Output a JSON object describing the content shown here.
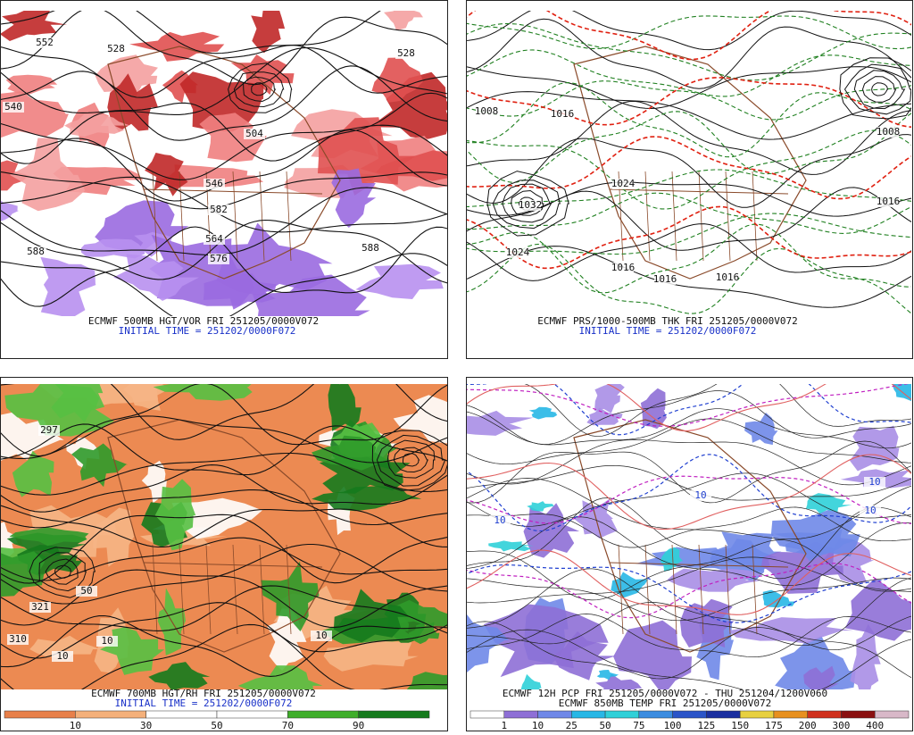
{
  "panels": [
    {
      "caption": "ECMWF 500MB HGT/VOR FRI 251205/0000V072",
      "subcaption": "INITIAL TIME = 251202/0000F072",
      "contour_labels": [
        "552",
        "528",
        "540",
        "528",
        "504",
        "546",
        "582",
        "564",
        "576",
        "588",
        "588"
      ]
    },
    {
      "caption": "ECMWF PRS/1000-500MB THK FRI 251205/0000V072",
      "subcaption": "INITIAL TIME = 251202/0000F072",
      "contour_labels": [
        "1008",
        "1016",
        "1032",
        "1024",
        "1024",
        "1016",
        "1016",
        "1008",
        "1016",
        "1016"
      ]
    },
    {
      "caption": "ECMWF 700MB HGT/RH FRI 251205/0000V072",
      "subcaption": "INITIAL TIME = 251202/0000F072",
      "contour_labels": [
        "297",
        "321",
        "310",
        "50",
        "10",
        "10",
        "10"
      ],
      "colorbar": {
        "labels": [
          "10",
          "30",
          "50",
          "70",
          "90"
        ],
        "colors": [
          "#e8804a",
          "#f4b07a",
          "#ffffff",
          "#ffffff",
          "#3fae2a",
          "#157a1d"
        ]
      }
    },
    {
      "caption": "ECMWF 12H PCP FRI 251205/0000V072 - THU 251204/1200V060",
      "subcaption": "ECMWF 850MB TEMP FRI 251205/0000V072",
      "contour_labels": [
        "10",
        "10",
        "10",
        "10"
      ],
      "colorbar": {
        "labels": [
          "1",
          "10",
          "25",
          "50",
          "75",
          "100",
          "125",
          "150",
          "175",
          "200",
          "300",
          "400"
        ],
        "colors": [
          "#ffffff",
          "#8e6fd6",
          "#6f88e8",
          "#27b7e6",
          "#2fd0d8",
          "#3b8ce0",
          "#2a54c8",
          "#1a2fa0",
          "#e8d040",
          "#e8901e",
          "#d0301c",
          "#8a1010",
          "#d8b8c8"
        ]
      }
    }
  ]
}
